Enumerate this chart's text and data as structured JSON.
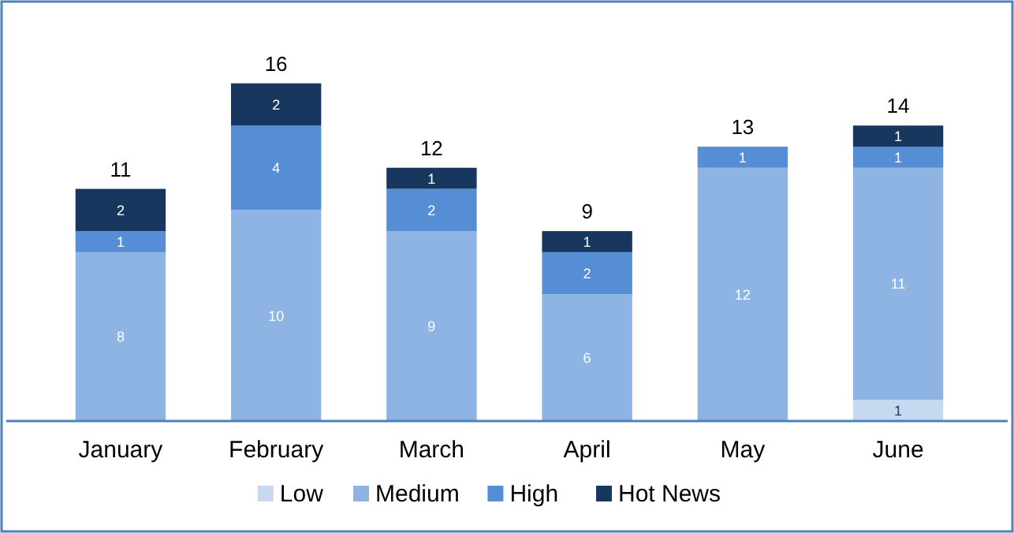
{
  "chart_data": {
    "type": "bar",
    "stacked": true,
    "data_labels": true,
    "legend": "bottom",
    "categories": [
      "January",
      "February",
      "March",
      "April",
      "May",
      "June"
    ],
    "series": [
      {
        "name": "Low",
        "color": "#c6d9f1",
        "values": [
          null,
          null,
          null,
          null,
          null,
          1
        ]
      },
      {
        "name": "Medium",
        "color": "#8db4e2",
        "values": [
          8,
          10,
          9,
          6,
          12,
          11
        ]
      },
      {
        "name": "High",
        "color": "#558ed5",
        "values": [
          1,
          4,
          2,
          2,
          1,
          1
        ]
      },
      {
        "name": "Hot News",
        "color": "#17375e",
        "values": [
          2,
          2,
          1,
          1,
          null,
          1
        ]
      }
    ],
    "totals": [
      "11",
      "16",
      "12",
      "9",
      "13",
      "14"
    ]
  }
}
